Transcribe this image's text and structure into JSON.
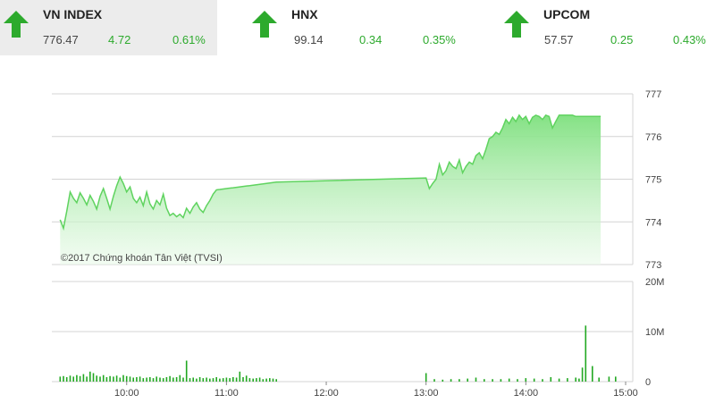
{
  "tickers": [
    {
      "name": "VN INDEX",
      "value": "776.47",
      "change": "4.72",
      "percent": "0.61%",
      "direction": "up",
      "arrow_icon": "arrow-up-icon"
    },
    {
      "name": "HNX",
      "value": "99.14",
      "change": "0.34",
      "percent": "0.35%",
      "direction": "up",
      "arrow_icon": "arrow-up-icon"
    },
    {
      "name": "UPCOM",
      "value": "57.57",
      "change": "0.25",
      "percent": "0.43%",
      "direction": "up",
      "arrow_icon": "arrow-up-icon"
    }
  ],
  "colors": {
    "up": "#2daa2d",
    "line": "#5fd35f",
    "area_top": "#7ee07e",
    "volume": "#22a822",
    "grid": "#d4d4d4"
  },
  "copyright": "©2017 Chứng khoán Tân Việt (TVSI)",
  "chart_data": [
    {
      "type": "area",
      "x_label": "",
      "y_label": "",
      "ylim": [
        773,
        777
      ],
      "y_ticks": [
        "777",
        "776",
        "775",
        "774",
        "773"
      ],
      "x_ticks": [
        "10:00",
        "11:00",
        "12:00",
        "13:00",
        "14:00",
        "15:00"
      ],
      "xlim": [
        "09:15",
        "15:00"
      ],
      "grid": true,
      "series": [
        {
          "x": [
            "09:20",
            "09:22",
            "09:24",
            "09:26",
            "09:28",
            "09:30",
            "09:32",
            "09:34",
            "09:36",
            "09:38",
            "09:40",
            "09:42",
            "09:44",
            "09:46",
            "09:48",
            "09:50",
            "09:52",
            "09:54",
            "09:56",
            "09:58",
            "10:00",
            "10:02",
            "10:04",
            "10:06",
            "10:08",
            "10:10",
            "10:12",
            "10:14",
            "10:16",
            "10:18",
            "10:20",
            "10:22",
            "10:24",
            "10:26",
            "10:28",
            "10:30",
            "10:32",
            "10:34",
            "10:36",
            "10:38",
            "10:40",
            "10:42",
            "10:44",
            "10:46",
            "10:48",
            "10:50",
            "10:52",
            "10:54",
            "10:56",
            "10:58",
            "11:00",
            "11:02",
            "11:04",
            "11:06",
            "11:08",
            "11:10",
            "11:12",
            "11:14",
            "11:16",
            "11:18",
            "11:20",
            "11:22",
            "11:24",
            "11:26",
            "11:28",
            "11:30",
            "13:00",
            "13:02",
            "13:04",
            "13:06",
            "13:08",
            "13:10",
            "13:12",
            "13:14",
            "13:16",
            "13:18",
            "13:20",
            "13:22",
            "13:24",
            "13:26",
            "13:28",
            "13:30",
            "13:32",
            "13:34",
            "13:36",
            "13:38",
            "13:40",
            "13:42",
            "13:44",
            "13:46",
            "13:48",
            "13:50",
            "13:52",
            "13:54",
            "13:56",
            "13:58",
            "14:00",
            "14:02",
            "14:04",
            "14:06",
            "14:08",
            "14:10",
            "14:12",
            "14:14",
            "14:16",
            "14:18",
            "14:20",
            "14:22",
            "14:24",
            "14:26",
            "14:28",
            "14:30",
            "14:45"
          ],
          "y": [
            774.05,
            773.85,
            774.25,
            774.7,
            774.55,
            774.45,
            774.68,
            774.55,
            774.4,
            774.62,
            774.48,
            774.3,
            774.6,
            774.78,
            774.55,
            774.3,
            774.6,
            774.85,
            775.05,
            774.9,
            774.7,
            774.82,
            774.55,
            774.45,
            774.58,
            774.38,
            774.7,
            774.42,
            774.3,
            774.5,
            774.4,
            774.65,
            774.32,
            774.15,
            774.2,
            774.12,
            774.18,
            774.1,
            774.32,
            774.2,
            774.35,
            774.45,
            774.3,
            774.22,
            774.38,
            774.5,
            774.65,
            774.75,
            774.76,
            774.77,
            774.78,
            774.79,
            774.8,
            774.81,
            774.82,
            774.83,
            774.84,
            774.85,
            774.86,
            774.87,
            774.88,
            774.89,
            774.9,
            774.91,
            774.92,
            774.93,
            775.03,
            774.78,
            774.9,
            775.0,
            775.35,
            775.1,
            775.2,
            775.4,
            775.3,
            775.25,
            775.45,
            775.15,
            775.3,
            775.4,
            775.35,
            775.55,
            775.62,
            775.48,
            775.7,
            775.95,
            776.0,
            776.1,
            776.05,
            776.2,
            776.4,
            776.3,
            776.45,
            776.35,
            776.5,
            776.4,
            776.47,
            776.3,
            776.45,
            776.5,
            776.47,
            776.4,
            776.5,
            776.47,
            776.2,
            776.35,
            776.5,
            776.5,
            776.5,
            776.5,
            776.5,
            776.47,
            776.47
          ]
        }
      ]
    },
    {
      "type": "bar",
      "x_label": "",
      "y_label": "",
      "ylim": [
        0,
        20000000
      ],
      "y_ticks": [
        "20M",
        "10M",
        "0"
      ],
      "x_ticks": [
        "10:00",
        "11:00",
        "12:00",
        "13:00",
        "14:00",
        "15:00"
      ],
      "series": [
        {
          "x": [
            "09:20",
            "09:22",
            "09:24",
            "09:26",
            "09:28",
            "09:30",
            "09:32",
            "09:34",
            "09:36",
            "09:38",
            "09:40",
            "09:42",
            "09:44",
            "09:46",
            "09:48",
            "09:50",
            "09:52",
            "09:54",
            "09:56",
            "09:58",
            "10:00",
            "10:02",
            "10:04",
            "10:06",
            "10:08",
            "10:10",
            "10:12",
            "10:14",
            "10:16",
            "10:18",
            "10:20",
            "10:22",
            "10:24",
            "10:26",
            "10:28",
            "10:30",
            "10:32",
            "10:34",
            "10:36",
            "10:38",
            "10:40",
            "10:42",
            "10:44",
            "10:46",
            "10:48",
            "10:50",
            "10:52",
            "10:54",
            "10:56",
            "10:58",
            "11:00",
            "11:02",
            "11:04",
            "11:06",
            "11:08",
            "11:10",
            "11:12",
            "11:14",
            "11:16",
            "11:18",
            "11:20",
            "11:22",
            "11:24",
            "11:26",
            "11:28",
            "11:30",
            "13:00",
            "13:05",
            "13:10",
            "13:15",
            "13:20",
            "13:25",
            "13:30",
            "13:35",
            "13:40",
            "13:45",
            "13:50",
            "13:55",
            "14:00",
            "14:05",
            "14:10",
            "14:15",
            "14:20",
            "14:25",
            "14:30",
            "14:32",
            "14:34",
            "14:36",
            "14:40",
            "14:44",
            "14:50",
            "14:54"
          ],
          "y": [
            1000000,
            1100000,
            900000,
            1200000,
            1000000,
            1300000,
            1100000,
            1500000,
            1000000,
            2000000,
            1700000,
            1200000,
            1000000,
            1300000,
            900000,
            1100000,
            1000000,
            1200000,
            800000,
            1300000,
            1100000,
            1000000,
            800000,
            900000,
            1000000,
            700000,
            800000,
            900000,
            700000,
            1000000,
            800000,
            700000,
            900000,
            1100000,
            800000,
            900000,
            1300000,
            800000,
            4200000,
            700000,
            800000,
            600000,
            900000,
            700000,
            800000,
            600000,
            700000,
            900000,
            600000,
            700000,
            800000,
            700000,
            900000,
            800000,
            2000000,
            900000,
            1200000,
            700000,
            600000,
            700000,
            800000,
            500000,
            600000,
            700000,
            600000,
            500000,
            1700000,
            500000,
            400000,
            500000,
            500000,
            600000,
            800000,
            500000,
            500000,
            500000,
            600000,
            500000,
            700000,
            600000,
            500000,
            900000,
            600000,
            700000,
            800000,
            600000,
            2800000,
            11200000,
            3100000,
            800000,
            1000000,
            1000000
          ]
        }
      ]
    }
  ]
}
